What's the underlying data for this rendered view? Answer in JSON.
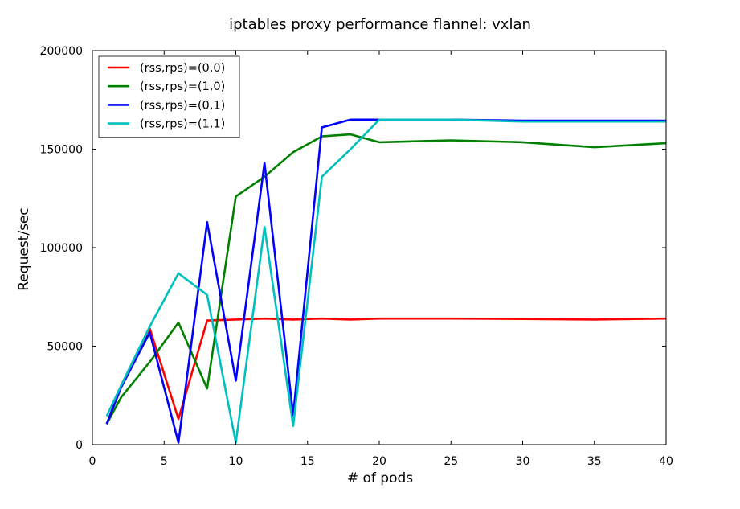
{
  "chart_data": {
    "type": "line",
    "title": "iptables proxy performance flannel: vxlan",
    "xlabel": "# of pods",
    "ylabel": "Request/sec",
    "xlim": [
      0,
      40
    ],
    "ylim": [
      0,
      200000
    ],
    "xticks": [
      0,
      5,
      10,
      15,
      20,
      25,
      30,
      35,
      40
    ],
    "yticks": [
      0,
      50000,
      100000,
      150000,
      200000
    ],
    "grid": false,
    "legend_position": "top-left",
    "series": [
      {
        "name": "(rss,rps)=(0,0)",
        "color": "#ff0000",
        "x": [
          1,
          2,
          4,
          6,
          8,
          10,
          12,
          14,
          16,
          18,
          20,
          25,
          30,
          35,
          40
        ],
        "y": [
          10500,
          30000,
          59000,
          13000,
          63000,
          63500,
          64000,
          63500,
          64000,
          63500,
          64000,
          64000,
          63800,
          63500,
          64000
        ]
      },
      {
        "name": "(rss,rps)=(1,0)",
        "color": "#008000",
        "x": [
          1,
          2,
          4,
          6,
          8,
          10,
          12,
          14,
          16,
          18,
          20,
          25,
          30,
          35,
          40
        ],
        "y": [
          10500,
          24000,
          42000,
          62000,
          28500,
          126000,
          136000,
          148500,
          156500,
          157500,
          153500,
          154500,
          153500,
          151000,
          153000
        ]
      },
      {
        "name": "(rss,rps)=(0,1)",
        "color": "#0000ff",
        "x": [
          1,
          2,
          4,
          6,
          8,
          10,
          12,
          14,
          16,
          18,
          20,
          25,
          30,
          35,
          40
        ],
        "y": [
          10500,
          29000,
          57000,
          1000,
          113000,
          32500,
          143000,
          15000,
          161000,
          165000,
          165000,
          165000,
          164500,
          164500,
          164500
        ]
      },
      {
        "name": "(rss,rps)=(1,1)",
        "color": "#00bfbf",
        "x": [
          1,
          2,
          4,
          6,
          8,
          10,
          12,
          14,
          16,
          18,
          20,
          25,
          30,
          35,
          40
        ],
        "y": [
          14500,
          30000,
          60000,
          87000,
          76000,
          1000,
          110500,
          9500,
          136000,
          150000,
          165000,
          165000,
          164000,
          164000,
          164000
        ]
      }
    ]
  }
}
